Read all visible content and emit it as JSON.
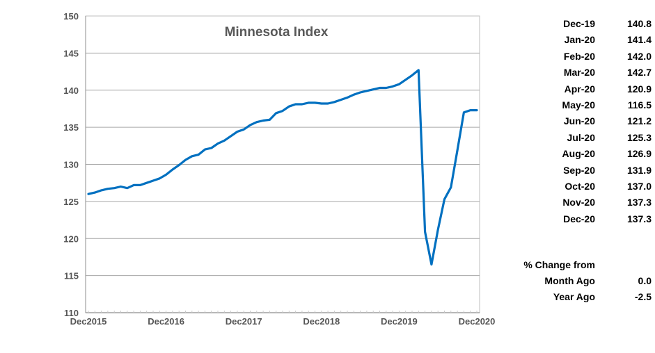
{
  "chart_data": {
    "type": "line",
    "title": "Minnesota Index",
    "xlabel": "",
    "ylabel": "",
    "ylim": [
      110,
      150
    ],
    "yticks": [
      110,
      115,
      120,
      125,
      130,
      135,
      140,
      145,
      150
    ],
    "xtick_labels": [
      "Dec2015",
      "Dec2016",
      "Dec2017",
      "Dec2018",
      "Dec2019",
      "Dec2020"
    ],
    "grid": true,
    "series": [
      {
        "color": "#0070C0",
        "x": [
          "Dec-15",
          "Jan-16",
          "Feb-16",
          "Mar-16",
          "Apr-16",
          "May-16",
          "Jun-16",
          "Jul-16",
          "Aug-16",
          "Sep-16",
          "Oct-16",
          "Nov-16",
          "Dec-16",
          "Jan-17",
          "Feb-17",
          "Mar-17",
          "Apr-17",
          "May-17",
          "Jun-17",
          "Jul-17",
          "Aug-17",
          "Sep-17",
          "Oct-17",
          "Nov-17",
          "Dec-17",
          "Jan-18",
          "Feb-18",
          "Mar-18",
          "Apr-18",
          "May-18",
          "Jun-18",
          "Jul-18",
          "Aug-18",
          "Sep-18",
          "Oct-18",
          "Nov-18",
          "Dec-18",
          "Jan-19",
          "Feb-19",
          "Mar-19",
          "Apr-19",
          "May-19",
          "Jun-19",
          "Jul-19",
          "Aug-19",
          "Sep-19",
          "Oct-19",
          "Nov-19",
          "Dec-19",
          "Jan-20",
          "Feb-20",
          "Mar-20",
          "Apr-20",
          "May-20",
          "Jun-20",
          "Jul-20",
          "Aug-20",
          "Sep-20",
          "Oct-20",
          "Nov-20",
          "Dec-20"
        ],
        "values": [
          126.0,
          126.2,
          126.5,
          126.7,
          126.8,
          127.0,
          126.8,
          127.2,
          127.2,
          127.5,
          127.8,
          128.1,
          128.6,
          129.3,
          129.9,
          130.6,
          131.1,
          131.3,
          132.0,
          132.2,
          132.8,
          133.2,
          133.8,
          134.4,
          134.7,
          135.3,
          135.7,
          135.9,
          136.0,
          136.9,
          137.2,
          137.8,
          138.1,
          138.1,
          138.3,
          138.3,
          138.2,
          138.2,
          138.4,
          138.7,
          139.0,
          139.4,
          139.7,
          139.9,
          140.1,
          140.3,
          140.3,
          140.5,
          140.8,
          141.4,
          142.0,
          142.7,
          120.9,
          116.5,
          121.2,
          125.3,
          126.9,
          131.9,
          137.0,
          137.3,
          137.3
        ]
      }
    ]
  },
  "side_table": {
    "rows": [
      {
        "month": "Dec-19",
        "value": "140.8"
      },
      {
        "month": "Jan-20",
        "value": "141.4"
      },
      {
        "month": "Feb-20",
        "value": "142.0"
      },
      {
        "month": "Mar-20",
        "value": "142.7"
      },
      {
        "month": "Apr-20",
        "value": "120.9"
      },
      {
        "month": "May-20",
        "value": "116.5"
      },
      {
        "month": "Jun-20",
        "value": "121.2"
      },
      {
        "month": "Jul-20",
        "value": "125.3"
      },
      {
        "month": "Aug-20",
        "value": "126.9"
      },
      {
        "month": "Sep-20",
        "value": "131.9"
      },
      {
        "month": "Oct-20",
        "value": "137.0"
      },
      {
        "month": "Nov-20",
        "value": "137.3"
      },
      {
        "month": "Dec-20",
        "value": "137.3"
      }
    ]
  },
  "change": {
    "heading": "% Change from",
    "month_label": "Month Ago",
    "month_value": "0.0",
    "year_label": "Year Ago",
    "year_value": "-2.5"
  }
}
